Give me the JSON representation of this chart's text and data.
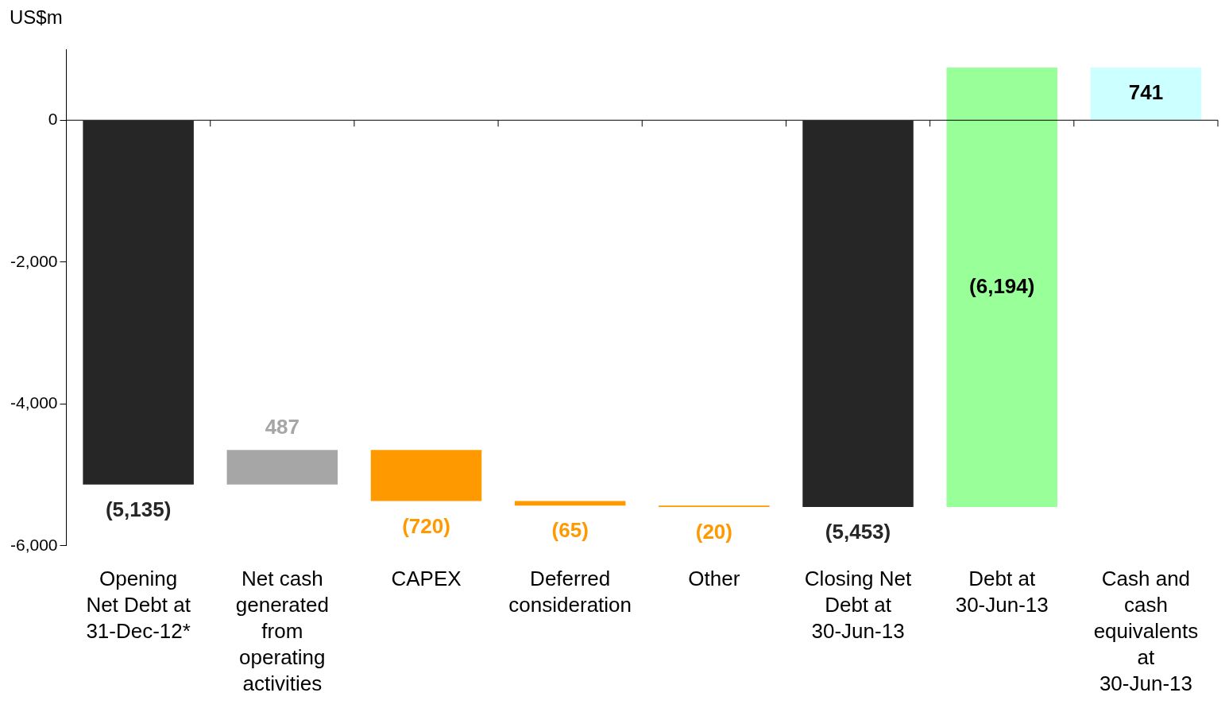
{
  "chart_data": {
    "type": "bar",
    "ylabel": "US$m",
    "categories": [
      "Opening Net Debt at 31-Dec-12*",
      "Net cash generated from operating activities",
      "CAPEX",
      "Deferred consideration",
      "Other",
      "Closing Net Debt at 30-Jun-13",
      "Debt at 30-Jun-13",
      "Cash and cash equivalents at 30-Jun-13"
    ],
    "values": [
      -5135,
      487,
      -720,
      -65,
      -20,
      -5453,
      -6194,
      741
    ],
    "base": [
      0,
      -5135,
      -4648,
      -5368,
      -5433,
      0,
      741,
      0
    ],
    "colors": [
      "#262626",
      "#a6a6a6",
      "#ff9900",
      "#ff9900",
      "#ff9900",
      "#262626",
      "#99ff99",
      "#ccffff"
    ],
    "value_labels": [
      "(5,135)",
      "487",
      "(720)",
      "(65)",
      "(20)",
      "(5,453)",
      "(6,194)",
      "741"
    ],
    "ylim": [
      -6000,
      1000
    ],
    "yticks": [
      {
        "value": -6000,
        "label": "-6,000"
      },
      {
        "value": -4000,
        "label": "-4,000"
      },
      {
        "value": -2000,
        "label": "-2,000"
      },
      0
    ],
    "legend": false
  }
}
